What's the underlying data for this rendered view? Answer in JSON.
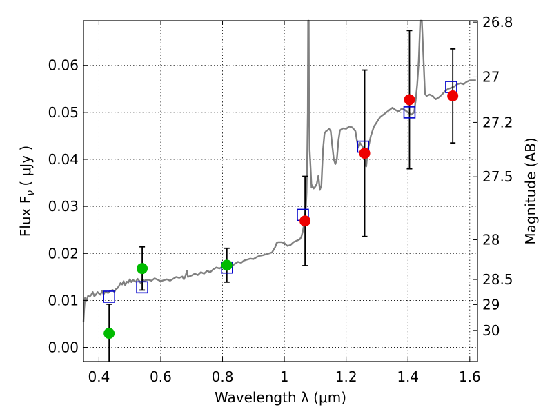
{
  "chart_data": {
    "type": "scatter",
    "xlabel": "Wavelength  λ (μm)",
    "ylabel": "Flux  F",
    "ylabel_sub": "ν",
    "ylabel_unit": "  ( μJy )",
    "y2label": "Magnitude (AB)",
    "xlim": [
      0.35,
      1.625
    ],
    "ylim": [
      -0.003,
      0.0695
    ],
    "grid": true,
    "x_ticks": [
      {
        "value": 0.4,
        "label": "0.4"
      },
      {
        "value": 0.6,
        "label": "0.6"
      },
      {
        "value": 0.8,
        "label": "0.8"
      },
      {
        "value": 1.0,
        "label": "1"
      },
      {
        "value": 1.2,
        "label": "1.2"
      },
      {
        "value": 1.4,
        "label": "1.4"
      },
      {
        "value": 1.6,
        "label": "1.6"
      }
    ],
    "y_ticks": [
      {
        "value": 0.0,
        "label": "0.00"
      },
      {
        "value": 0.01,
        "label": "0.01"
      },
      {
        "value": 0.02,
        "label": "0.02"
      },
      {
        "value": 0.03,
        "label": "0.03"
      },
      {
        "value": 0.04,
        "label": "0.04"
      },
      {
        "value": 0.05,
        "label": "0.05"
      },
      {
        "value": 0.06,
        "label": "0.06"
      }
    ],
    "y2_ticks": [
      {
        "mag": 26.8,
        "label": "26.8"
      },
      {
        "mag": 27.0,
        "label": "27"
      },
      {
        "mag": 27.2,
        "label": "27.2"
      },
      {
        "mag": 27.5,
        "label": "27.5"
      },
      {
        "mag": 28.0,
        "label": "28"
      },
      {
        "mag": 28.5,
        "label": "28.5"
      },
      {
        "mag": 29.0,
        "label": "29"
      },
      {
        "mag": 30.0,
        "label": "30"
      }
    ],
    "model_spectrum": {
      "color": "#808080",
      "points": [
        [
          0.35,
          0.0055
        ],
        [
          0.352,
          0.008
        ],
        [
          0.355,
          0.0105
        ],
        [
          0.36,
          0.01
        ],
        [
          0.365,
          0.011
        ],
        [
          0.37,
          0.0108
        ],
        [
          0.375,
          0.0112
        ],
        [
          0.38,
          0.0118
        ],
        [
          0.385,
          0.0109
        ],
        [
          0.39,
          0.0112
        ],
        [
          0.395,
          0.0118
        ],
        [
          0.4,
          0.0115
        ],
        [
          0.405,
          0.0112
        ],
        [
          0.41,
          0.012
        ],
        [
          0.415,
          0.0113
        ],
        [
          0.42,
          0.0118
        ],
        [
          0.425,
          0.0117
        ],
        [
          0.43,
          0.0116
        ],
        [
          0.435,
          0.012
        ],
        [
          0.44,
          0.0121
        ],
        [
          0.445,
          0.0122
        ],
        [
          0.45,
          0.0118
        ],
        [
          0.455,
          0.0124
        ],
        [
          0.46,
          0.0126
        ],
        [
          0.465,
          0.0131
        ],
        [
          0.47,
          0.0137
        ],
        [
          0.475,
          0.0134
        ],
        [
          0.48,
          0.0141
        ],
        [
          0.485,
          0.0132
        ],
        [
          0.49,
          0.014
        ],
        [
          0.495,
          0.0138
        ],
        [
          0.5,
          0.0145
        ],
        [
          0.505,
          0.0139
        ],
        [
          0.51,
          0.0144
        ],
        [
          0.515,
          0.0141
        ],
        [
          0.52,
          0.014
        ],
        [
          0.525,
          0.0146
        ],
        [
          0.53,
          0.0142
        ],
        [
          0.535,
          0.0137
        ],
        [
          0.54,
          0.0145
        ],
        [
          0.545,
          0.0141
        ],
        [
          0.55,
          0.0143
        ],
        [
          0.56,
          0.0144
        ],
        [
          0.57,
          0.0142
        ],
        [
          0.58,
          0.0147
        ],
        [
          0.59,
          0.0144
        ],
        [
          0.6,
          0.0141
        ],
        [
          0.61,
          0.0143
        ],
        [
          0.62,
          0.0145
        ],
        [
          0.63,
          0.0142
        ],
        [
          0.64,
          0.0146
        ],
        [
          0.65,
          0.015
        ],
        [
          0.66,
          0.0148
        ],
        [
          0.67,
          0.0151
        ],
        [
          0.675,
          0.0145
        ],
        [
          0.68,
          0.0152
        ],
        [
          0.685,
          0.0163
        ],
        [
          0.688,
          0.015
        ],
        [
          0.7,
          0.0153
        ],
        [
          0.71,
          0.0157
        ],
        [
          0.72,
          0.0154
        ],
        [
          0.73,
          0.016
        ],
        [
          0.74,
          0.0157
        ],
        [
          0.75,
          0.0163
        ],
        [
          0.76,
          0.016
        ],
        [
          0.77,
          0.0166
        ],
        [
          0.78,
          0.017
        ],
        [
          0.79,
          0.0168
        ],
        [
          0.8,
          0.0172
        ],
        [
          0.81,
          0.017
        ],
        [
          0.82,
          0.0175
        ],
        [
          0.83,
          0.0173
        ],
        [
          0.84,
          0.0178
        ],
        [
          0.85,
          0.0182
        ],
        [
          0.86,
          0.018
        ],
        [
          0.87,
          0.0185
        ],
        [
          0.88,
          0.0187
        ],
        [
          0.89,
          0.0189
        ],
        [
          0.9,
          0.0188
        ],
        [
          0.91,
          0.0192
        ],
        [
          0.92,
          0.0195
        ],
        [
          0.93,
          0.0196
        ],
        [
          0.94,
          0.0198
        ],
        [
          0.95,
          0.02
        ],
        [
          0.96,
          0.0202
        ],
        [
          0.97,
          0.0213
        ],
        [
          0.975,
          0.0222
        ],
        [
          0.98,
          0.0224
        ],
        [
          0.99,
          0.0224
        ],
        [
          1.0,
          0.0222
        ],
        [
          1.01,
          0.0216
        ],
        [
          1.02,
          0.0218
        ],
        [
          1.03,
          0.0224
        ],
        [
          1.04,
          0.0227
        ],
        [
          1.05,
          0.023
        ],
        [
          1.055,
          0.0235
        ],
        [
          1.06,
          0.0248
        ],
        [
          1.065,
          0.0268
        ],
        [
          1.07,
          0.03
        ],
        [
          1.072,
          0.033
        ],
        [
          1.074,
          0.04
        ],
        [
          1.076,
          0.05
        ],
        [
          1.077,
          0.0695
        ],
        [
          1.079,
          0.0695
        ],
        [
          1.08,
          0.05
        ],
        [
          1.082,
          0.042
        ],
        [
          1.085,
          0.038
        ],
        [
          1.088,
          0.034
        ],
        [
          1.09,
          0.0345
        ],
        [
          1.095,
          0.0338
        ],
        [
          1.1,
          0.0342
        ],
        [
          1.105,
          0.0348
        ],
        [
          1.11,
          0.0365
        ],
        [
          1.115,
          0.0335
        ],
        [
          1.12,
          0.0345
        ],
        [
          1.125,
          0.042
        ],
        [
          1.13,
          0.0455
        ],
        [
          1.135,
          0.046
        ],
        [
          1.14,
          0.0462
        ],
        [
          1.145,
          0.0465
        ],
        [
          1.15,
          0.046
        ],
        [
          1.155,
          0.043
        ],
        [
          1.16,
          0.04
        ],
        [
          1.165,
          0.039
        ],
        [
          1.17,
          0.04
        ],
        [
          1.175,
          0.044
        ],
        [
          1.18,
          0.0462
        ],
        [
          1.19,
          0.0466
        ],
        [
          1.2,
          0.0465
        ],
        [
          1.21,
          0.047
        ],
        [
          1.22,
          0.0468
        ],
        [
          1.23,
          0.046
        ],
        [
          1.235,
          0.044
        ],
        [
          1.24,
          0.0425
        ],
        [
          1.245,
          0.0435
        ],
        [
          1.25,
          0.043
        ],
        [
          1.255,
          0.0425
        ],
        [
          1.26,
          0.04
        ],
        [
          1.265,
          0.0385
        ],
        [
          1.27,
          0.042
        ],
        [
          1.28,
          0.045
        ],
        [
          1.29,
          0.047
        ],
        [
          1.3,
          0.048
        ],
        [
          1.31,
          0.049
        ],
        [
          1.32,
          0.0495
        ],
        [
          1.33,
          0.05
        ],
        [
          1.34,
          0.0505
        ],
        [
          1.35,
          0.051
        ],
        [
          1.36,
          0.0505
        ],
        [
          1.37,
          0.0502
        ],
        [
          1.38,
          0.0508
        ],
        [
          1.39,
          0.0505
        ],
        [
          1.4,
          0.05
        ],
        [
          1.41,
          0.0495
        ],
        [
          1.42,
          0.05
        ],
        [
          1.425,
          0.0525
        ],
        [
          1.43,
          0.056
        ],
        [
          1.435,
          0.061
        ],
        [
          1.44,
          0.0695
        ],
        [
          1.445,
          0.0695
        ],
        [
          1.45,
          0.062
        ],
        [
          1.455,
          0.054
        ],
        [
          1.46,
          0.0535
        ],
        [
          1.47,
          0.0538
        ],
        [
          1.48,
          0.0535
        ],
        [
          1.49,
          0.0528
        ],
        [
          1.5,
          0.0532
        ],
        [
          1.51,
          0.0538
        ],
        [
          1.52,
          0.0545
        ],
        [
          1.53,
          0.055
        ],
        [
          1.54,
          0.0552
        ],
        [
          1.55,
          0.0555
        ],
        [
          1.56,
          0.056
        ],
        [
          1.57,
          0.0562
        ],
        [
          1.58,
          0.056
        ],
        [
          1.59,
          0.0565
        ],
        [
          1.6,
          0.0568
        ],
        [
          1.61,
          0.0568
        ],
        [
          1.62,
          0.0568
        ]
      ]
    },
    "model_photometry": {
      "color": "#0000cc",
      "points": [
        [
          0.433,
          0.0108
        ],
        [
          0.54,
          0.0128
        ],
        [
          0.814,
          0.017
        ],
        [
          1.06,
          0.0282
        ],
        [
          1.255,
          0.0427
        ],
        [
          1.405,
          0.05
        ],
        [
          1.54,
          0.0554
        ]
      ]
    },
    "observed_low_snr": {
      "color": "#00bb00",
      "points": [
        {
          "x": 0.433,
          "y": 0.003,
          "err": 0.0062
        },
        {
          "x": 0.54,
          "y": 0.0168,
          "err": 0.0046
        },
        {
          "x": 0.814,
          "y": 0.0175,
          "err": 0.0036
        }
      ]
    },
    "observed_high_snr": {
      "color": "#ee0000",
      "points": [
        {
          "x": 1.067,
          "y": 0.0269,
          "err": 0.0095
        },
        {
          "x": 1.26,
          "y": 0.0413,
          "err": 0.0177
        },
        {
          "x": 1.405,
          "y": 0.0527,
          "err": 0.0147
        },
        {
          "x": 1.545,
          "y": 0.0535,
          "err": 0.01
        }
      ]
    }
  }
}
